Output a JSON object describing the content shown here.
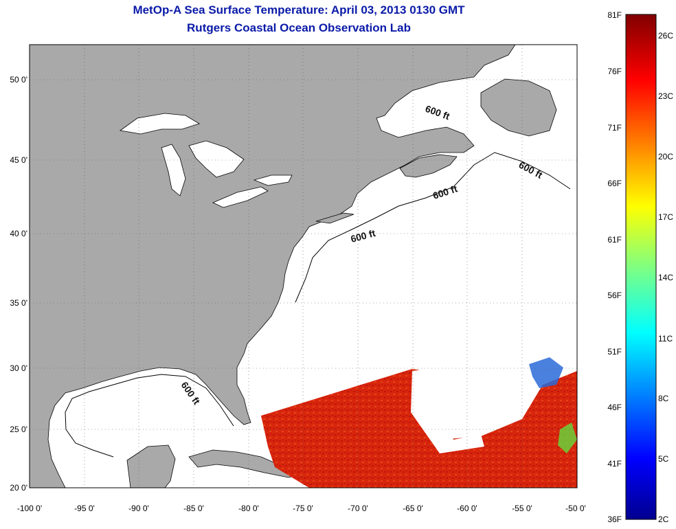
{
  "title": "MetOp-A Sea Surface Temperature:  April 03, 2013 0130 GMT",
  "subtitle": "Rutgers Coastal Ocean Observation Lab",
  "lat_labels": [
    "50 0'",
    "45 0'",
    "40 0'",
    "35 0'",
    "30 0'",
    "25 0'",
    "20 0'"
  ],
  "lon_labels": [
    "-100 0'",
    "-95 0'",
    "-90 0'",
    "-85 0'",
    "-80 0'",
    "-75 0'",
    "-70 0'",
    "-65 0'",
    "-60 0'",
    "-55 0'",
    "-50 0'"
  ],
  "contour_label": "600 ft",
  "colorbar": {
    "f_labels": [
      "81F",
      "76F",
      "71F",
      "66F",
      "61F",
      "56F",
      "51F",
      "46F",
      "41F",
      "36F"
    ],
    "c_labels": [
      "26C",
      "23C",
      "20C",
      "17C",
      "14C",
      "11C",
      "8C",
      "5C",
      "2C"
    ]
  },
  "colors": {
    "land": "#a9a9a9",
    "ocean": "#ffffff",
    "title": "#0a1aa8",
    "sst_warm": "#d8200a"
  }
}
